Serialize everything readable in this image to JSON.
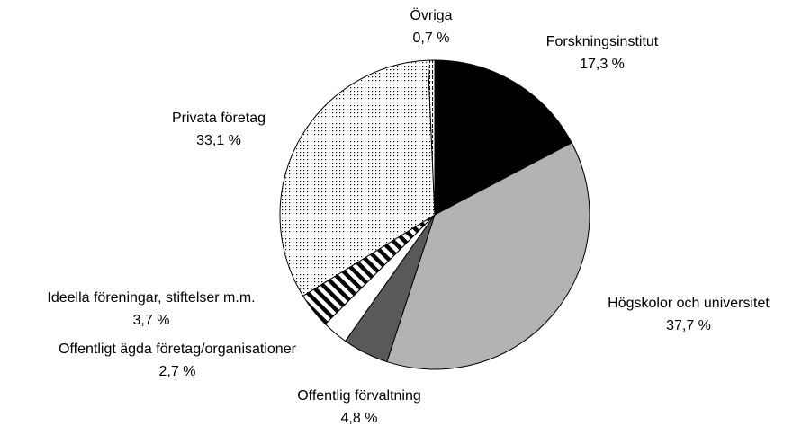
{
  "chart_data": {
    "type": "pie",
    "categories": [
      "Forskningsinstitut",
      "Högskolor och universitet",
      "Offentlig förvaltning",
      "Offentligt ägda företag/organisationer",
      "Ideella föreningar, stiftelser m.m.",
      "Privata företag",
      "Övriga"
    ],
    "values": [
      17.3,
      37.7,
      4.8,
      2.7,
      3.7,
      33.1,
      0.7
    ],
    "value_labels": [
      "17,3 %",
      "37,7 %",
      "4,8 %",
      "2,7 %",
      "3,7 %",
      "33,1 %",
      "0,7 %"
    ],
    "colors": [
      "#000000",
      "#b3b3b3",
      "#595959",
      "#ffffff",
      "url(#diag)",
      "url(#dots)",
      "url(#vert)"
    ]
  }
}
